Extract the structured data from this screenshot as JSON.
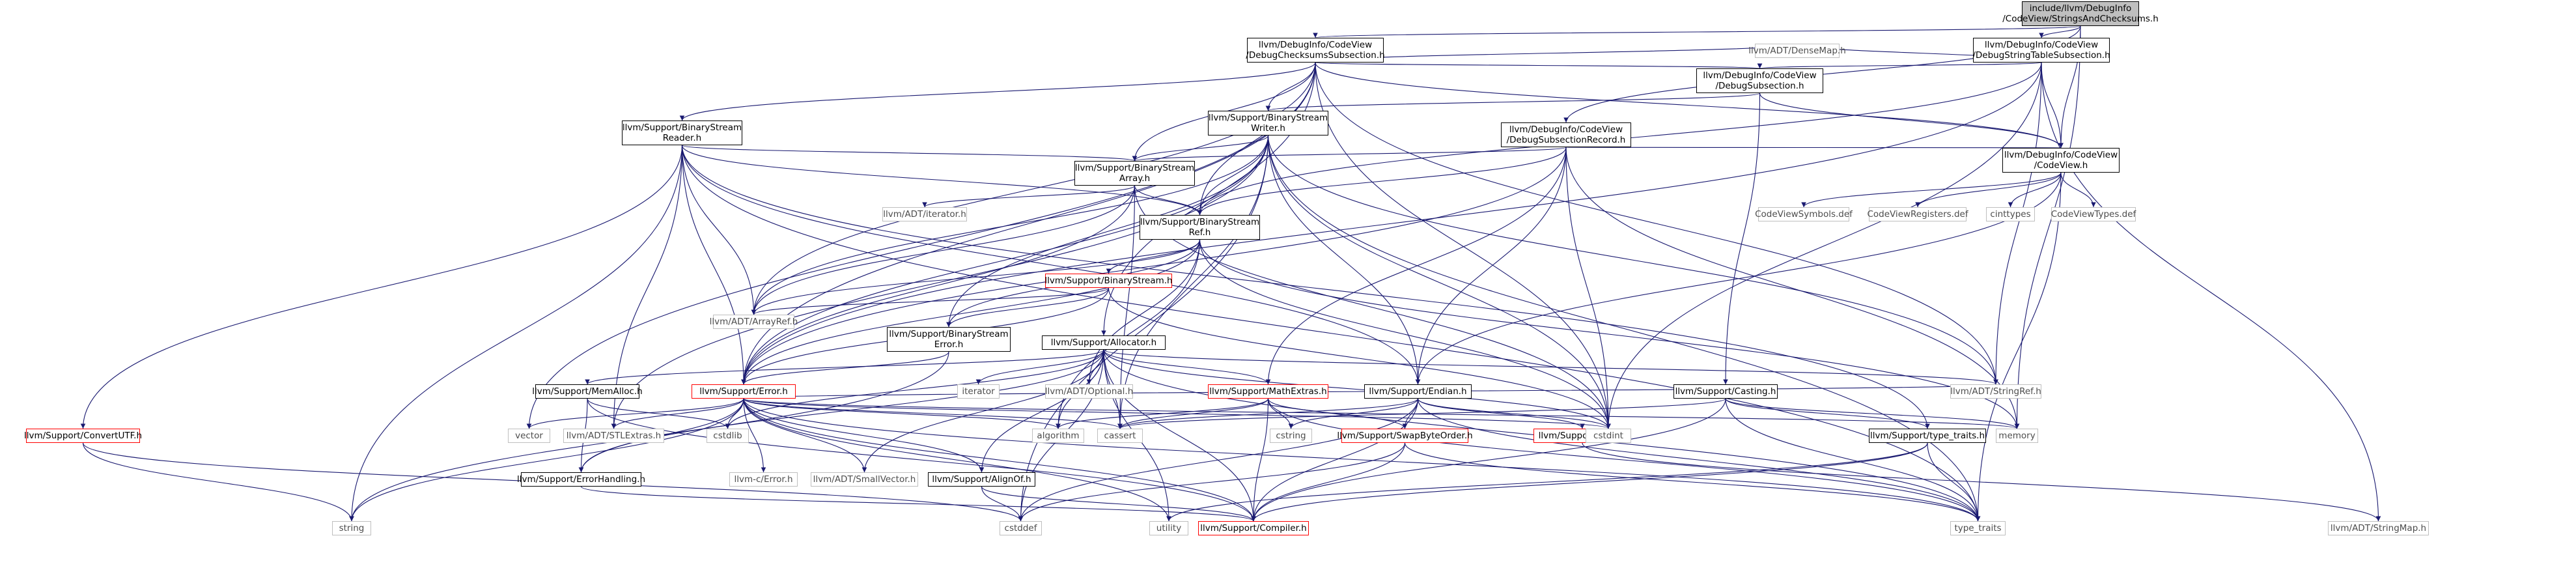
{
  "colors": {
    "edge": "#191970",
    "root_fill": "#bfbfbf",
    "missing_border": "#ff0000",
    "system_border": "#bfbfbf"
  },
  "nodes": [
    {
      "id": "root",
      "label": "include/llvm/DebugInfo\n/CodeView/StringsAndChecksums.h",
      "kind": "root"
    },
    {
      "id": "dcss",
      "label": "llvm/DebugInfo/CodeView\n/DebugChecksumsSubsection.h",
      "kind": "link"
    },
    {
      "id": "dsts",
      "label": "llvm/DebugInfo/CodeView\n/DebugStringTableSubsection.h",
      "kind": "link"
    },
    {
      "id": "ds",
      "label": "llvm/DebugInfo/CodeView\n/DebugSubsection.h",
      "kind": "link"
    },
    {
      "id": "densemap",
      "label": "llvm/ADT/DenseMap.h",
      "kind": "plain"
    },
    {
      "id": "bsr",
      "label": "llvm/Support/BinaryStream\nReader.h",
      "kind": "link"
    },
    {
      "id": "bsw",
      "label": "llvm/Support/BinaryStream\nWriter.h",
      "kind": "link"
    },
    {
      "id": "dsr",
      "label": "llvm/DebugInfo/CodeView\n/DebugSubsectionRecord.h",
      "kind": "link"
    },
    {
      "id": "cv",
      "label": "llvm/DebugInfo/CodeView\n/CodeView.h",
      "kind": "link"
    },
    {
      "id": "bsa",
      "label": "llvm/Support/BinaryStream\nArray.h",
      "kind": "link"
    },
    {
      "id": "bsref",
      "label": "llvm/Support/BinaryStream\nRef.h",
      "kind": "link"
    },
    {
      "id": "iterator_h",
      "label": "llvm/ADT/iterator.h",
      "kind": "plain"
    },
    {
      "id": "cvsym",
      "label": "CodeViewSymbols.def",
      "kind": "plain"
    },
    {
      "id": "cvreg",
      "label": "CodeViewRegisters.def",
      "kind": "plain"
    },
    {
      "id": "cinttypes",
      "label": "cinttypes",
      "kind": "plain"
    },
    {
      "id": "cvtypes",
      "label": "CodeViewTypes.def",
      "kind": "plain"
    },
    {
      "id": "bs",
      "label": "llvm/Support/BinaryStream.h",
      "kind": "red"
    },
    {
      "id": "arrayref",
      "label": "llvm/ADT/ArrayRef.h",
      "kind": "plain"
    },
    {
      "id": "bse",
      "label": "llvm/Support/BinaryStream\nError.h",
      "kind": "link"
    },
    {
      "id": "alloc",
      "label": "llvm/Support/Allocator.h",
      "kind": "link"
    },
    {
      "id": "optional",
      "label": "llvm/ADT/Optional.h",
      "kind": "plain"
    },
    {
      "id": "iterator",
      "label": "iterator",
      "kind": "plain"
    },
    {
      "id": "mathextras",
      "label": "llvm/Support/MathExtras.h",
      "kind": "red"
    },
    {
      "id": "endian",
      "label": "llvm/Support/Endian.h",
      "kind": "link"
    },
    {
      "id": "stringref",
      "label": "llvm/ADT/StringRef.h",
      "kind": "plain"
    },
    {
      "id": "casting",
      "label": "llvm/Support/Casting.h",
      "kind": "link"
    },
    {
      "id": "memalloc",
      "label": "llvm/Support/MemAlloc.h",
      "kind": "link"
    },
    {
      "id": "error",
      "label": "llvm/Support/Error.h",
      "kind": "red"
    },
    {
      "id": "convutf",
      "label": "llvm/Support/ConvertUTF.h",
      "kind": "red"
    },
    {
      "id": "vector",
      "label": "vector",
      "kind": "plain"
    },
    {
      "id": "stlextras",
      "label": "llvm/ADT/STLExtras.h",
      "kind": "plain"
    },
    {
      "id": "cstdlib",
      "label": "cstdlib",
      "kind": "plain"
    },
    {
      "id": "errhandling",
      "label": "llvm/Support/ErrorHandling.h",
      "kind": "link"
    },
    {
      "id": "cerror",
      "label": "llvm-c/Error.h",
      "kind": "plain"
    },
    {
      "id": "smallvector",
      "label": "llvm/ADT/SmallVector.h",
      "kind": "plain"
    },
    {
      "id": "alignof",
      "label": "llvm/Support/AlignOf.h",
      "kind": "link"
    },
    {
      "id": "algorithm",
      "label": "algorithm",
      "kind": "plain"
    },
    {
      "id": "cassert",
      "label": "cassert",
      "kind": "plain"
    },
    {
      "id": "cstring",
      "label": "cstring",
      "kind": "plain"
    },
    {
      "id": "swapbyteorder",
      "label": "llvm/Support/SwapByteOrder.h",
      "kind": "red"
    },
    {
      "id": "host",
      "label": "llvm/Support/Host.h",
      "kind": "red"
    },
    {
      "id": "cstdint",
      "label": "cstdint",
      "kind": "plain"
    },
    {
      "id": "typetraits_h",
      "label": "llvm/Support/type_traits.h",
      "kind": "link"
    },
    {
      "id": "memory",
      "label": "memory",
      "kind": "plain"
    },
    {
      "id": "string",
      "label": "string",
      "kind": "plain"
    },
    {
      "id": "cstddef",
      "label": "cstddef",
      "kind": "plain"
    },
    {
      "id": "utility",
      "label": "utility",
      "kind": "plain"
    },
    {
      "id": "compiler",
      "label": "llvm/Support/Compiler.h",
      "kind": "red"
    },
    {
      "id": "type_traits",
      "label": "type_traits",
      "kind": "plain"
    },
    {
      "id": "stringmap",
      "label": "llvm/ADT/StringMap.h",
      "kind": "plain"
    }
  ],
  "edges": [
    [
      "root",
      "dcss"
    ],
    [
      "root",
      "dsts"
    ],
    [
      "root",
      "dsr"
    ],
    [
      "root",
      "cv"
    ],
    [
      "root",
      "memory"
    ],
    [
      "dcss",
      "ds"
    ],
    [
      "dcss",
      "densemap"
    ],
    [
      "dcss",
      "bsr"
    ],
    [
      "dcss",
      "bsa"
    ],
    [
      "dcss",
      "bsref"
    ],
    [
      "dcss",
      "cv"
    ],
    [
      "dcss",
      "arrayref"
    ],
    [
      "dcss",
      "alloc"
    ],
    [
      "dcss",
      "error"
    ],
    [
      "dcss",
      "stringref"
    ],
    [
      "dcss",
      "cstdint"
    ],
    [
      "dcss",
      "vector"
    ],
    [
      "dcss",
      "bsw"
    ],
    [
      "dsts",
      "ds"
    ],
    [
      "dsts",
      "densemap"
    ],
    [
      "dsts",
      "cv"
    ],
    [
      "dsts",
      "stringref"
    ],
    [
      "dsts",
      "error"
    ],
    [
      "dsts",
      "bsref"
    ],
    [
      "dsts",
      "cstdint"
    ],
    [
      "dsts",
      "stringmap"
    ],
    [
      "ds",
      "cv"
    ],
    [
      "ds",
      "casting"
    ],
    [
      "ds",
      "bsw"
    ],
    [
      "bsr",
      "arrayref"
    ],
    [
      "bsr",
      "stlextras"
    ],
    [
      "bsr",
      "convutf"
    ],
    [
      "bsr",
      "bsa"
    ],
    [
      "bsr",
      "bsref"
    ],
    [
      "bsr",
      "endian"
    ],
    [
      "bsr",
      "error"
    ],
    [
      "bsr",
      "type_traits"
    ],
    [
      "bsr",
      "string"
    ],
    [
      "bsr",
      "typetraits_h"
    ],
    [
      "bsw",
      "arrayref"
    ],
    [
      "bsw",
      "stlextras"
    ],
    [
      "bsw",
      "stringref"
    ],
    [
      "bsw",
      "bsa"
    ],
    [
      "bsw",
      "bse"
    ],
    [
      "bsw",
      "bsref"
    ],
    [
      "bsw",
      "endian"
    ],
    [
      "bsw",
      "error"
    ],
    [
      "bsw",
      "cstdint"
    ],
    [
      "bsw",
      "type_traits"
    ],
    [
      "bsw",
      "cassert"
    ],
    [
      "bsw",
      "cstddef"
    ],
    [
      "dsr",
      "cv"
    ],
    [
      "dsr",
      "bsa"
    ],
    [
      "dsr",
      "bsref"
    ],
    [
      "dsr",
      "endian"
    ],
    [
      "dsr",
      "error"
    ],
    [
      "dsr",
      "mathextras"
    ],
    [
      "dsr",
      "cstdint"
    ],
    [
      "dsr",
      "memory"
    ],
    [
      "cv",
      "cvsym"
    ],
    [
      "cv",
      "cvreg"
    ],
    [
      "cv",
      "cinttypes"
    ],
    [
      "cv",
      "cvtypes"
    ],
    [
      "cv",
      "endian"
    ],
    [
      "cv",
      "type_traits"
    ],
    [
      "bsa",
      "arrayref"
    ],
    [
      "bsa",
      "iterator_h"
    ],
    [
      "bsa",
      "bsref"
    ],
    [
      "bsa",
      "error"
    ],
    [
      "bsa",
      "cassert"
    ],
    [
      "bsa",
      "cstdint"
    ],
    [
      "bsref",
      "arrayref"
    ],
    [
      "bsref",
      "optional"
    ],
    [
      "bsref",
      "bs"
    ],
    [
      "bsref",
      "bse"
    ],
    [
      "bsref",
      "error"
    ],
    [
      "bsref",
      "algorithm"
    ],
    [
      "bsref",
      "cstdint"
    ],
    [
      "bsref",
      "memory"
    ],
    [
      "bs",
      "arrayref"
    ],
    [
      "bs",
      "bse"
    ],
    [
      "bs",
      "error"
    ],
    [
      "bs",
      "cstdint"
    ],
    [
      "bse",
      "error"
    ],
    [
      "bse",
      "string"
    ],
    [
      "alloc",
      "optional"
    ],
    [
      "alloc",
      "smallvector"
    ],
    [
      "alloc",
      "alignof"
    ],
    [
      "alloc",
      "compiler"
    ],
    [
      "alloc",
      "errhandling"
    ],
    [
      "alloc",
      "mathextras"
    ],
    [
      "alloc",
      "memalloc"
    ],
    [
      "alloc",
      "algorithm"
    ],
    [
      "alloc",
      "cassert"
    ],
    [
      "alloc",
      "cstddef"
    ],
    [
      "alloc",
      "cstdint"
    ],
    [
      "alloc",
      "cstdlib"
    ],
    [
      "alloc",
      "iterator"
    ],
    [
      "alloc",
      "type_traits"
    ],
    [
      "alloc",
      "utility"
    ],
    [
      "alloc",
      "stringref"
    ],
    [
      "mathextras",
      "compiler"
    ],
    [
      "mathextras",
      "swapbyteorder"
    ],
    [
      "mathextras",
      "algorithm"
    ],
    [
      "mathextras",
      "cassert"
    ],
    [
      "mathextras",
      "cstring"
    ],
    [
      "mathextras",
      "type_traits"
    ],
    [
      "endian",
      "compiler"
    ],
    [
      "endian",
      "host"
    ],
    [
      "endian",
      "swapbyteorder"
    ],
    [
      "endian",
      "cassert"
    ],
    [
      "endian",
      "cstddef"
    ],
    [
      "endian",
      "cstdint"
    ],
    [
      "endian",
      "cstring"
    ],
    [
      "endian",
      "type_traits"
    ],
    [
      "casting",
      "compiler"
    ],
    [
      "casting",
      "typetraits_h"
    ],
    [
      "casting",
      "cassert"
    ],
    [
      "casting",
      "memory"
    ],
    [
      "casting",
      "type_traits"
    ],
    [
      "memalloc",
      "compiler"
    ],
    [
      "memalloc",
      "errhandling"
    ],
    [
      "memalloc",
      "cstdlib"
    ],
    [
      "error",
      "cerror"
    ],
    [
      "error",
      "stlextras"
    ],
    [
      "error",
      "smallvector"
    ],
    [
      "error",
      "stringref"
    ],
    [
      "error",
      "twine"
    ],
    [
      "error",
      "alignof"
    ],
    [
      "error",
      "compiler"
    ],
    [
      "error",
      "debug"
    ],
    [
      "error",
      "errhandling"
    ],
    [
      "error",
      "format"
    ],
    [
      "error",
      "algorithm"
    ],
    [
      "error",
      "cassert"
    ],
    [
      "error",
      "cstdint"
    ],
    [
      "error",
      "cstdlib"
    ],
    [
      "error",
      "memory"
    ],
    [
      "error",
      "new"
    ],
    [
      "error",
      "string"
    ],
    [
      "error",
      "system_error"
    ],
    [
      "error",
      "type_traits"
    ],
    [
      "error",
      "utility"
    ],
    [
      "error",
      "vector"
    ],
    [
      "convutf",
      "string"
    ],
    [
      "convutf",
      "cstddef"
    ],
    [
      "errhandling",
      "compiler"
    ],
    [
      "alignof",
      "compiler"
    ],
    [
      "alignof",
      "cstddef"
    ],
    [
      "swapbyteorder",
      "compiler"
    ],
    [
      "swapbyteorder",
      "cstddef"
    ],
    [
      "swapbyteorder",
      "type_traits"
    ],
    [
      "host",
      "stringmap"
    ],
    [
      "typetraits_h",
      "compiler"
    ],
    [
      "typetraits_h",
      "type_traits"
    ],
    [
      "typetraits_h",
      "utility"
    ]
  ]
}
